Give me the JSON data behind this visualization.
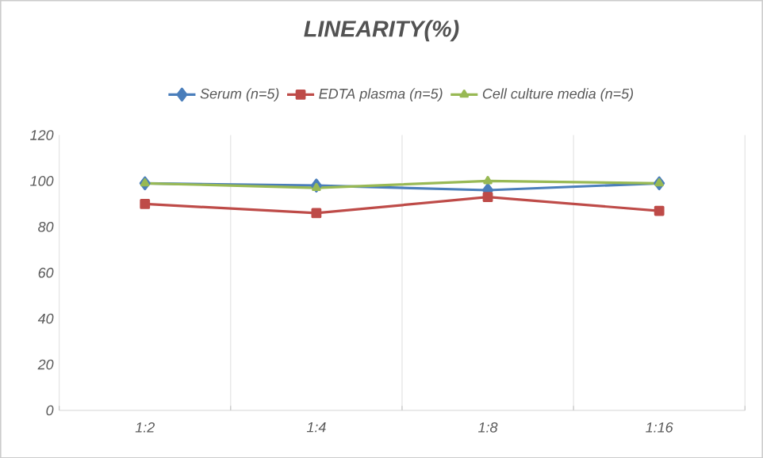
{
  "chart_data": {
    "type": "line",
    "title": "LINEARITY(%)",
    "categories": [
      "1:2",
      "1:4",
      "1:8",
      "1:16"
    ],
    "series": [
      {
        "name": "Serum (n=5)",
        "color": "#4a7ebb",
        "values": [
          99,
          98,
          96,
          99
        ],
        "marker": "diamond"
      },
      {
        "name": "EDTA plasma (n=5)",
        "color": "#be4b48",
        "values": [
          90,
          86,
          93,
          87
        ],
        "marker": "square"
      },
      {
        "name": "Cell culture media (n=5)",
        "color": "#98b954",
        "values": [
          99,
          97,
          100,
          99
        ],
        "marker": "triangle"
      }
    ],
    "ylim": [
      0,
      120
    ],
    "yticks": [
      0,
      20,
      40,
      60,
      80,
      100,
      120
    ],
    "grid": "x",
    "legend": "top"
  }
}
